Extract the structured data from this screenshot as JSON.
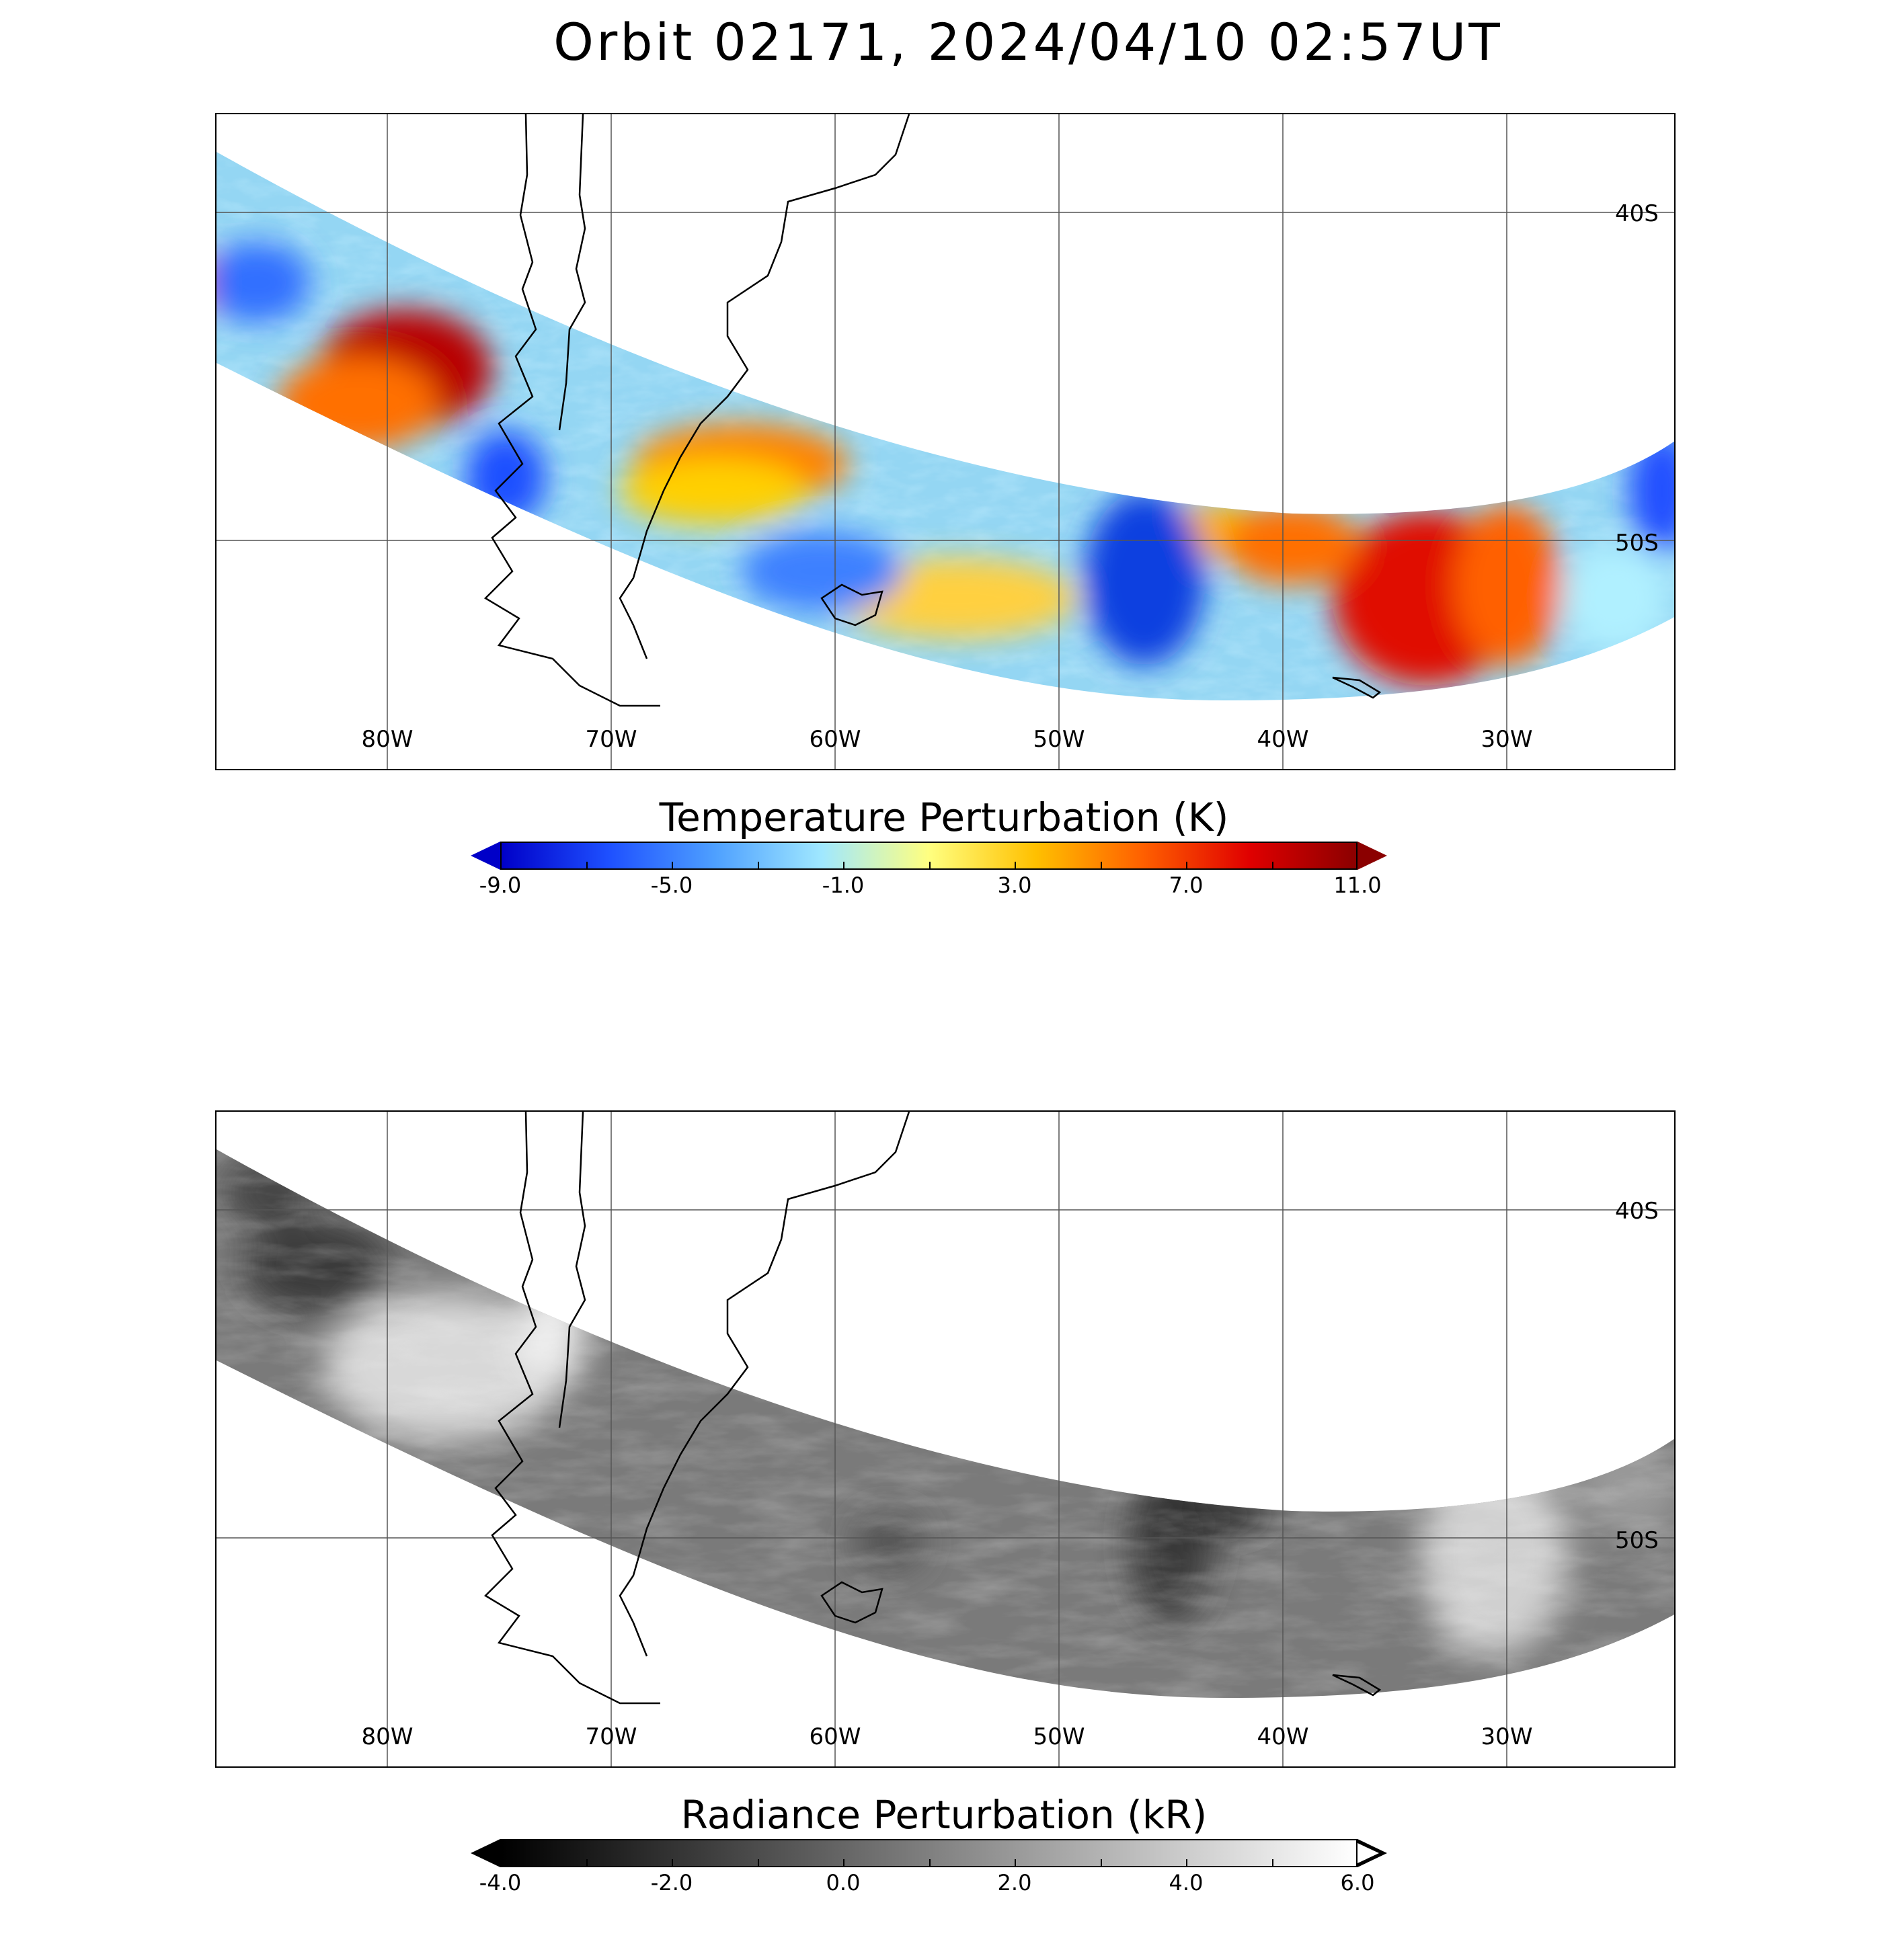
{
  "figure": {
    "title": "Orbit 02171, 2024/04/10 02:57UT"
  },
  "maps": {
    "lon_labels": [
      "80W",
      "70W",
      "60W",
      "50W",
      "40W",
      "30W"
    ],
    "lat_labels": [
      "40S",
      "50S"
    ],
    "lon_range": [
      -87.6,
      -22.4
    ],
    "lat_range": [
      -37.0,
      -57.0
    ]
  },
  "temperature": {
    "colorbar_title": "Temperature Perturbation (K)",
    "colorbar_range": [
      -9.0,
      11.0
    ],
    "colorbar_labels": [
      "-9.0",
      "-5.0",
      "-1.0",
      "3.0",
      "7.0",
      "11.0"
    ],
    "colormap": [
      "#0000c8",
      "#1e50ff",
      "#4ea0ff",
      "#a0e8ff",
      "#ffff80",
      "#ffc000",
      "#ff6000",
      "#e00000",
      "#8b0000"
    ],
    "under_color": "#0000c8",
    "over_color": "#8b0000"
  },
  "radiance": {
    "colorbar_title": "Radiance Perturbation (kR)",
    "colorbar_range": [
      -4.0,
      6.0
    ],
    "colorbar_labels": [
      "-4.0",
      "-2.0",
      "0.0",
      "2.0",
      "4.0",
      "6.0"
    ],
    "colormap": [
      "#000000",
      "#ffffff"
    ],
    "under_color": "#000000",
    "over_color": "#ffffff"
  }
}
